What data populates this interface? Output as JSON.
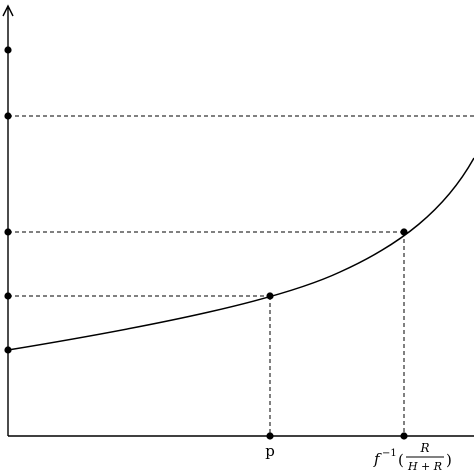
{
  "diagram": {
    "x_axis_labels": {
      "p": "p",
      "f_inverse_base": "f",
      "f_inverse_exponent": "−1",
      "fraction_open_paren": "(",
      "fraction_numerator": "R",
      "fraction_denominator": "H + R",
      "fraction_close_paren": ")"
    },
    "colors": {
      "line": "#000000",
      "background": "#ffffff"
    }
  }
}
